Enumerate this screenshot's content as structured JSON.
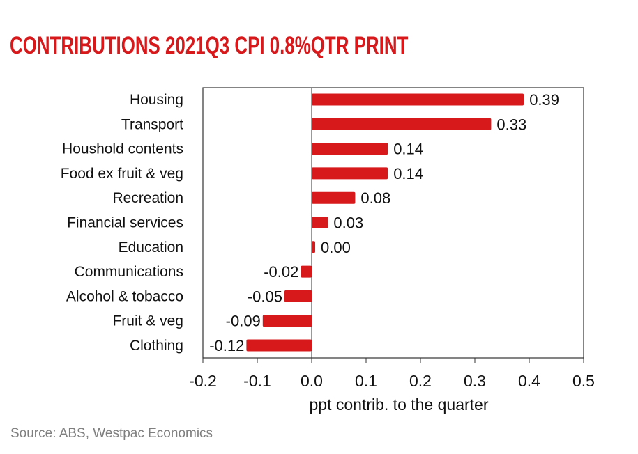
{
  "title": "CONTRIBUTIONS 2021Q3 CPI 0.8%QTR PRINT",
  "source": "Source: ABS, Westpac Economics",
  "colors": {
    "bar": "#d7191c",
    "title": "#d7191c",
    "axis": "#333333",
    "source": "#7f7f7f"
  },
  "chart_data": {
    "type": "bar",
    "orientation": "horizontal",
    "title": "CONTRIBUTIONS 2021Q3 CPI 0.8%QTR PRINT",
    "xlabel": "ppt contrib. to the quarter",
    "ylabel": "",
    "xlim": [
      -0.2,
      0.5
    ],
    "xticks": [
      -0.2,
      -0.1,
      0.0,
      0.1,
      0.2,
      0.3,
      0.4,
      0.5
    ],
    "xtick_labels": [
      "-0.2",
      "-0.1",
      "0.0",
      "0.1",
      "0.2",
      "0.3",
      "0.4",
      "0.5"
    ],
    "grid": false,
    "categories": [
      "Housing",
      "Transport",
      "Houshold contents",
      "Food ex fruit & veg",
      "Recreation",
      "Financial services",
      "Education",
      "Communications",
      "Alcohol & tobacco",
      "Fruit & veg",
      "Clothing"
    ],
    "values": [
      0.39,
      0.33,
      0.14,
      0.14,
      0.08,
      0.03,
      0.005,
      -0.02,
      -0.05,
      -0.09,
      -0.12
    ],
    "data_labels": [
      "0.39",
      "0.33",
      "0.14",
      "0.14",
      "0.08",
      "0.03",
      "0.00",
      "-0.02",
      "-0.05",
      "-0.09",
      "-0.12"
    ]
  }
}
